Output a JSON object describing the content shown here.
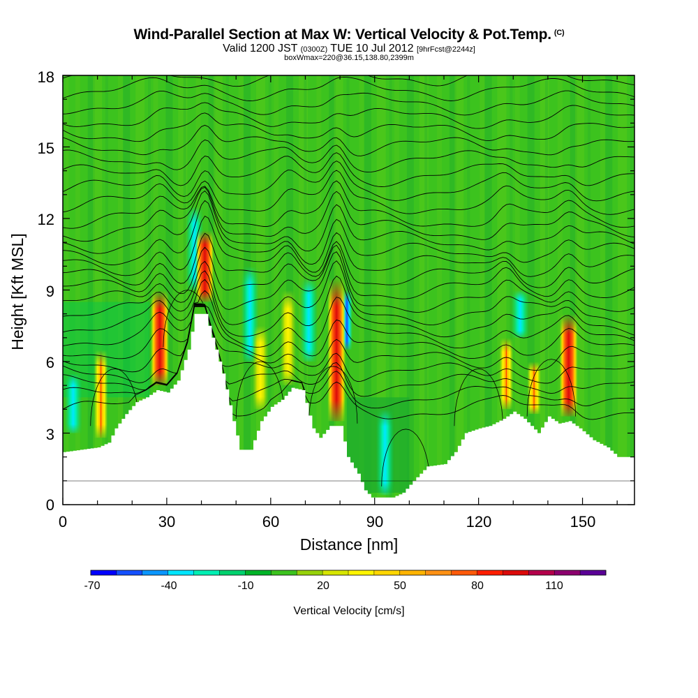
{
  "header": {
    "title": "Wind-Parallel Section at Max W: Vertical Velocity & Pot.Temp.",
    "copyright": "(C)",
    "valid_prefix": "Valid 1200 JST",
    "valid_utc": "(0300Z)",
    "valid_date": "TUE 10 Jul 2012",
    "forecast": "[9hrFcst@2244z]",
    "box_info": "boxWmax=220@36.15,138.80,2399m"
  },
  "chart_data": {
    "type": "heatmap",
    "xlabel": "Distance [nm]",
    "ylabel": "Height [Kft MSL]",
    "xlim": [
      0,
      165
    ],
    "ylim": [
      0,
      18
    ],
    "x_ticks": [
      "0",
      "30",
      "60",
      "90",
      "120",
      "150"
    ],
    "y_ticks": [
      "0",
      "3",
      "6",
      "9",
      "12",
      "15",
      "18"
    ],
    "terrain_kft": [
      [
        0,
        2.2
      ],
      [
        10,
        2.4
      ],
      [
        13,
        2.6
      ],
      [
        15,
        3.2
      ],
      [
        18,
        3.8
      ],
      [
        21,
        4.3
      ],
      [
        24,
        4.5
      ],
      [
        27,
        4.8
      ],
      [
        30,
        4.7
      ],
      [
        33,
        5.2
      ],
      [
        36,
        6.5
      ],
      [
        38,
        8.0
      ],
      [
        41,
        8.0
      ],
      [
        43,
        7.0
      ],
      [
        46,
        5.5
      ],
      [
        49,
        3.5
      ],
      [
        51,
        2.3
      ],
      [
        54,
        2.3
      ],
      [
        57,
        3.5
      ],
      [
        60,
        4.1
      ],
      [
        63,
        4.4
      ],
      [
        66,
        4.9
      ],
      [
        69,
        4.8
      ],
      [
        72,
        3.2
      ],
      [
        74,
        2.8
      ],
      [
        77,
        3.3
      ],
      [
        80,
        3.3
      ],
      [
        82,
        2.0
      ],
      [
        85,
        1.3
      ],
      [
        87,
        0.6
      ],
      [
        89,
        0.3
      ],
      [
        95,
        0.3
      ],
      [
        98,
        0.5
      ],
      [
        101,
        1.0
      ],
      [
        105,
        1.6
      ],
      [
        110,
        1.7
      ],
      [
        113,
        2.2
      ],
      [
        116,
        3.0
      ],
      [
        120,
        3.2
      ],
      [
        123,
        3.3
      ],
      [
        127,
        3.6
      ],
      [
        130,
        3.9
      ],
      [
        133,
        3.6
      ],
      [
        137,
        3.0
      ],
      [
        140,
        3.7
      ],
      [
        143,
        3.4
      ],
      [
        146,
        3.5
      ],
      [
        149,
        3.2
      ],
      [
        153,
        2.7
      ],
      [
        157,
        2.4
      ],
      [
        160,
        2.0
      ],
      [
        165,
        2.0
      ]
    ],
    "updrafts": [
      {
        "x": 11,
        "ybot": 2.8,
        "ytop": 6.5,
        "w": 45
      },
      {
        "x": 28,
        "ybot": 5.0,
        "ytop": 9.0,
        "w": 80
      },
      {
        "x": 41,
        "ybot": 8.5,
        "ytop": 11.5,
        "w": 75
      },
      {
        "x": 57,
        "ybot": 4.0,
        "ytop": 7.5,
        "w": 30
      },
      {
        "x": 65,
        "ybot": 5.0,
        "ytop": 9.0,
        "w": 35
      },
      {
        "x": 79,
        "ybot": 3.5,
        "ytop": 9.5,
        "w": 110
      },
      {
        "x": 128,
        "ybot": 4.0,
        "ytop": 7.0,
        "w": 50
      },
      {
        "x": 136,
        "ybot": 3.8,
        "ytop": 6.0,
        "w": 40
      },
      {
        "x": 146,
        "ybot": 3.7,
        "ytop": 8.0,
        "w": 80
      }
    ],
    "downdrafts": [
      {
        "x": 3,
        "ybot": 3.0,
        "ytop": 5.5,
        "w": -30
      },
      {
        "x": 38,
        "ybot": 9.0,
        "ytop": 12.5,
        "w": -35
      },
      {
        "x": 54,
        "ybot": 6.0,
        "ytop": 10.0,
        "w": -30
      },
      {
        "x": 71,
        "ybot": 6.0,
        "ytop": 9.5,
        "w": -30
      },
      {
        "x": 82,
        "ybot": 6.5,
        "ytop": 9.0,
        "w": -45
      },
      {
        "x": 93,
        "ybot": 0.4,
        "ytop": 4.0,
        "w": -30
      },
      {
        "x": 132,
        "ybot": 7.0,
        "ytop": 9.0,
        "w": -30
      }
    ],
    "colorbar": {
      "label": "Vertical Velocity [cm/s]",
      "tick_labels": [
        "-70",
        "-40",
        "-10",
        "20",
        "50",
        "80",
        "110"
      ],
      "colors": [
        "#0000ff",
        "#1450ff",
        "#0a96ff",
        "#00e6ff",
        "#00f0b4",
        "#00d26e",
        "#00b428",
        "#3cc31e",
        "#96d20a",
        "#d7e600",
        "#fff500",
        "#ffd700",
        "#ffb400",
        "#ff9114",
        "#ff5a0a",
        "#ff1e00",
        "#dc0a0a",
        "#b4004b",
        "#8c006e",
        "#5a0096"
      ]
    }
  }
}
